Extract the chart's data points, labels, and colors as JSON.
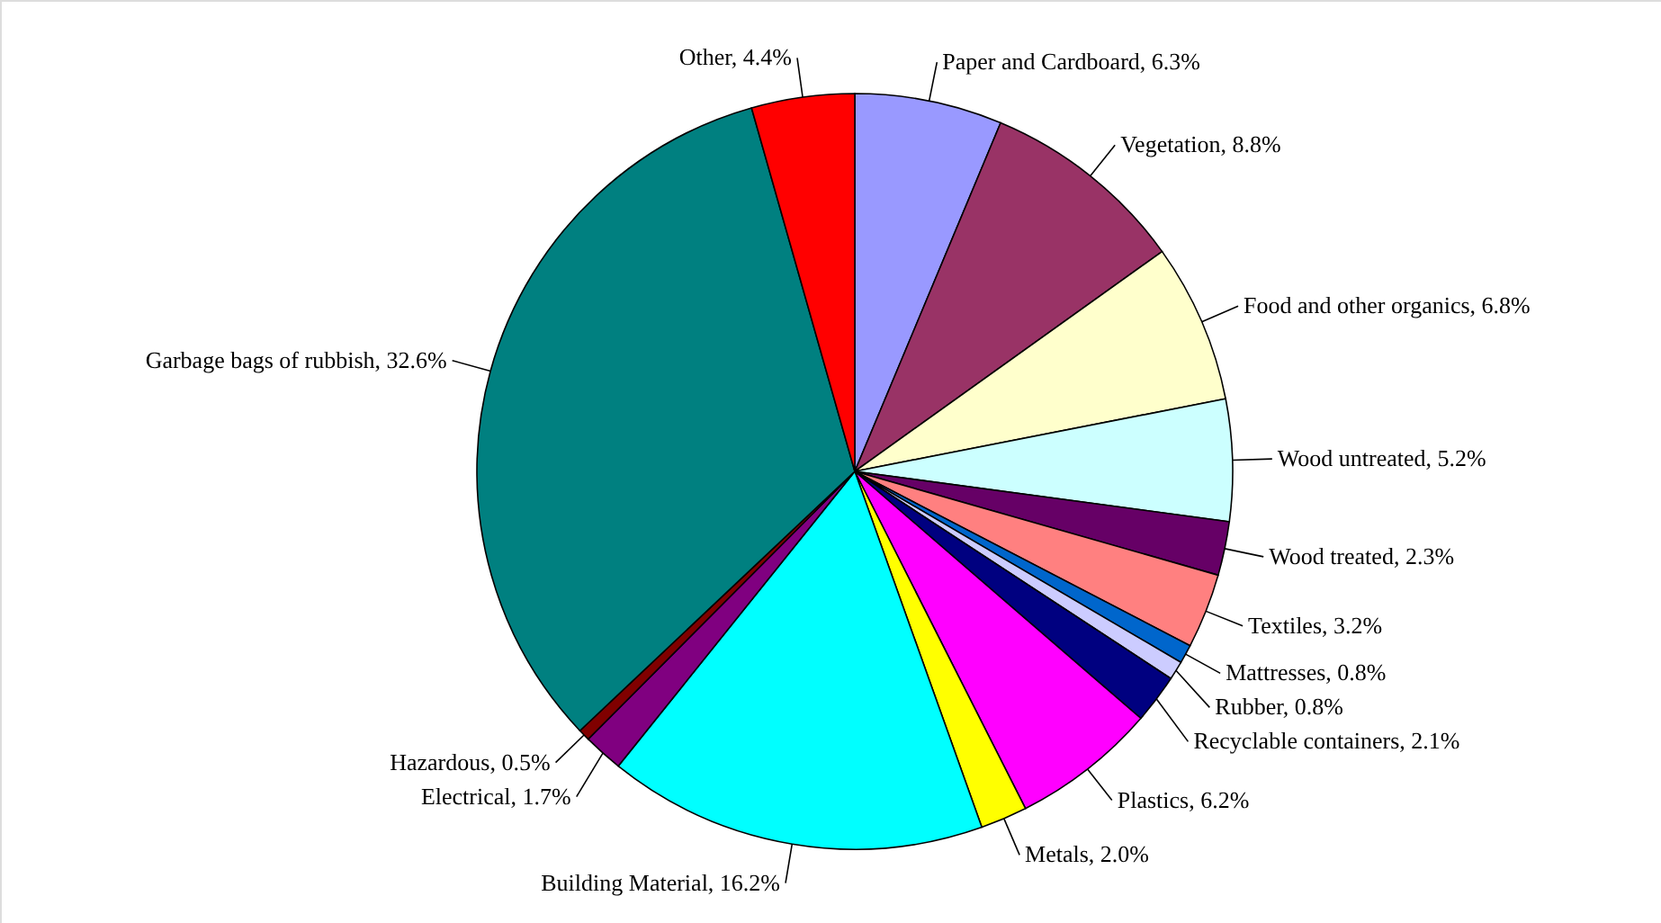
{
  "chart_data": {
    "type": "pie",
    "categories": [
      "Paper and Cardboard",
      "Vegetation",
      "Food and other organics",
      "Wood untreated",
      "Wood treated",
      "Textiles",
      "Mattresses",
      "Rubber",
      "Recyclable containers",
      "Plastics",
      "Metals",
      "Building Material",
      "Electrical",
      "Hazardous",
      "Garbage bags of rubbish",
      "Other"
    ],
    "values": [
      6.3,
      8.8,
      6.8,
      5.2,
      2.3,
      3.2,
      0.8,
      0.8,
      2.1,
      6.2,
      2.0,
      16.2,
      1.7,
      0.5,
      32.6,
      4.4
    ],
    "value_labels": [
      "6.3%",
      "8.8%",
      "6.8%",
      "5.2%",
      "2.3%",
      "3.2%",
      "0.8%",
      "0.8%",
      "2.1%",
      "6.2%",
      "2.0%",
      "16.2%",
      "1.7%",
      "0.5%",
      "32.6%",
      "4.4%"
    ],
    "colors": [
      "#9999ff",
      "#993366",
      "#ffffcc",
      "#ccffff",
      "#660066",
      "#ff8080",
      "#0066cc",
      "#ccccff",
      "#000080",
      "#ff00ff",
      "#ffff00",
      "#00ffff",
      "#800080",
      "#800000",
      "#008080",
      "#ff0000"
    ]
  }
}
